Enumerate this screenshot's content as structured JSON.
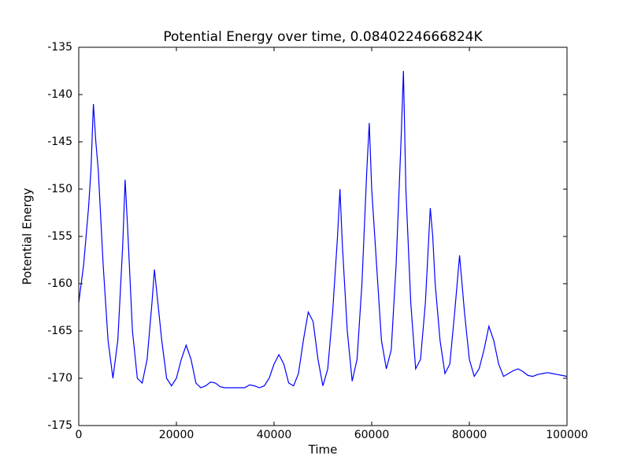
{
  "chart_data": {
    "type": "line",
    "title": "Potential Energy over time, 0.0840224666824K",
    "x_label": "Time",
    "y_label": "Potential Energy",
    "x": [
      0,
      1000,
      2000,
      2500,
      3000,
      3500,
      4000,
      5000,
      6000,
      7000,
      8000,
      9000,
      9500,
      10000,
      11000,
      12000,
      13000,
      14000,
      15000,
      15500,
      16000,
      17000,
      18000,
      19000,
      20000,
      21000,
      22000,
      23000,
      24000,
      25000,
      26000,
      27000,
      28000,
      29000,
      30000,
      31000,
      32000,
      33000,
      34000,
      35000,
      36000,
      37000,
      38000,
      39000,
      40000,
      41000,
      42000,
      43000,
      44000,
      45000,
      46000,
      47000,
      48000,
      49000,
      50000,
      51000,
      52000,
      53000,
      53500,
      54000,
      55000,
      56000,
      57000,
      58000,
      59000,
      59500,
      60000,
      61000,
      62000,
      63000,
      64000,
      65000,
      66000,
      66500,
      67000,
      68000,
      69000,
      70000,
      71000,
      72000,
      72500,
      73000,
      74000,
      75000,
      76000,
      77000,
      78000,
      79000,
      80000,
      81000,
      82000,
      83000,
      84000,
      85000,
      86000,
      87000,
      88000,
      89000,
      90000,
      91000,
      92000,
      93000,
      94000,
      95000,
      96000,
      97000,
      98000,
      99000,
      100000
    ],
    "series": [
      {
        "name": "Potential Energy",
        "color": "#0000ff",
        "values": [
          -162,
          -158,
          -152,
          -148,
          -141,
          -145,
          -148,
          -158,
          -166,
          -170,
          -166,
          -156,
          -149,
          -154,
          -165,
          -170,
          -170.5,
          -168,
          -162,
          -158.5,
          -161,
          -166,
          -170,
          -170.8,
          -170,
          -168,
          -166.5,
          -168,
          -170.5,
          -171,
          -170.8,
          -170.4,
          -170.5,
          -170.9,
          -171,
          -171,
          -171,
          -171,
          -171,
          -170.7,
          -170.8,
          -171,
          -170.8,
          -170,
          -168.5,
          -167.5,
          -168.5,
          -170.5,
          -170.8,
          -169.5,
          -166,
          -163,
          -164,
          -168,
          -170.8,
          -169,
          -163,
          -155,
          -150,
          -156,
          -165,
          -170.3,
          -168,
          -160,
          -148,
          -143,
          -150,
          -158,
          -166,
          -169,
          -167,
          -158,
          -145,
          -137.5,
          -150,
          -162,
          -169,
          -168,
          -162,
          -152,
          -155,
          -160,
          -166,
          -169.5,
          -168.5,
          -163,
          -157,
          -163,
          -168,
          -169.8,
          -169,
          -167,
          -164.5,
          -166,
          -168.5,
          -169.8,
          -169.5,
          -169.2,
          -169,
          -169.3,
          -169.7,
          -169.8,
          -169.6,
          -169.5,
          -169.4,
          -169.5,
          -169.6,
          -169.7,
          -169.8
        ]
      }
    ],
    "xlim": [
      0,
      100000
    ],
    "xticks": [
      0,
      20000,
      40000,
      60000,
      80000,
      100000
    ],
    "ylim": [
      -175,
      -135
    ],
    "yticks": [
      -175,
      -170,
      -165,
      -160,
      -155,
      -150,
      -145,
      -140,
      -135
    ]
  }
}
